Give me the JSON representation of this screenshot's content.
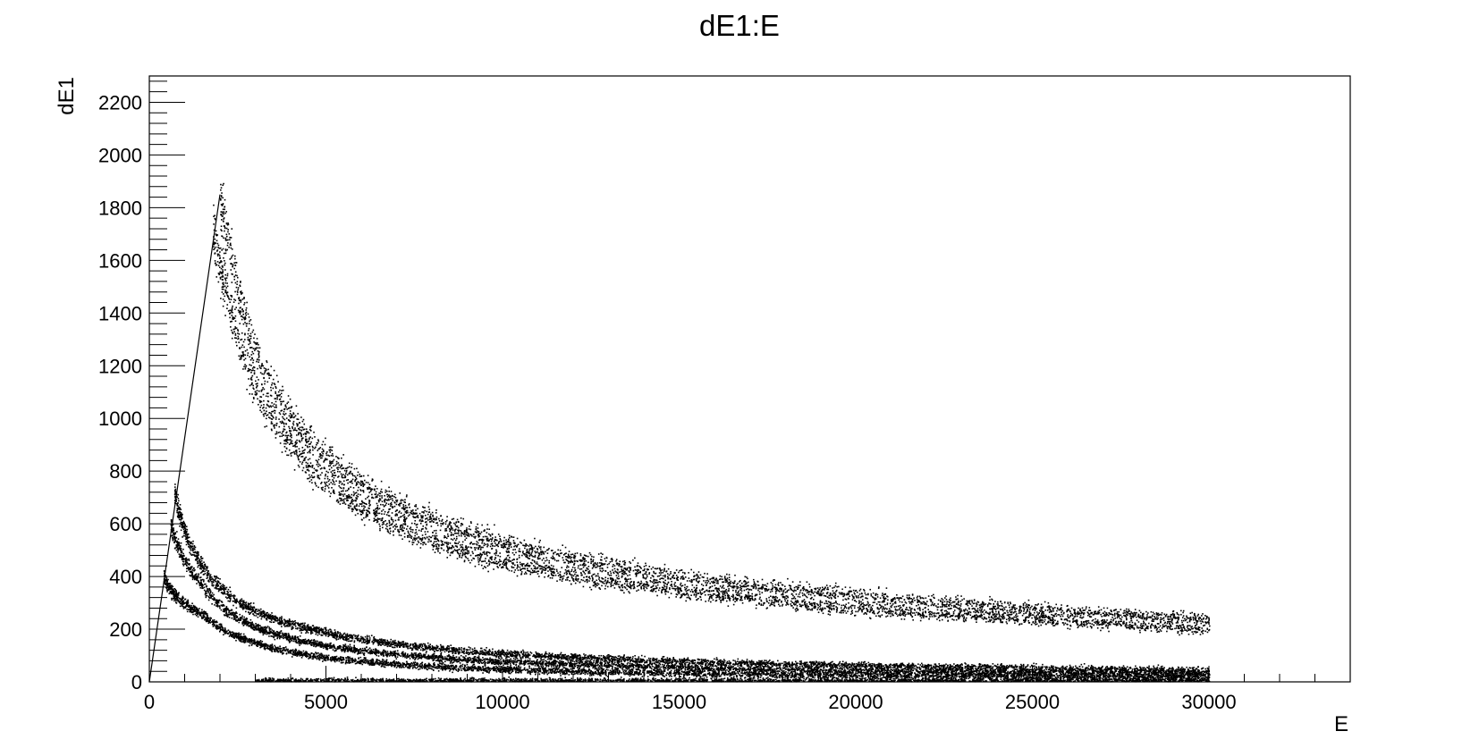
{
  "chart_data": {
    "type": "scatter",
    "title": "dE1:E",
    "xlabel": "E",
    "ylabel": "dE1",
    "xlim": [
      0,
      34000
    ],
    "ylim": [
      0,
      2300
    ],
    "x_ticks": [
      0,
      5000,
      10000,
      15000,
      20000,
      25000,
      30000
    ],
    "x_tick_labels": [
      "0",
      "5000",
      "10000",
      "15000",
      "20000",
      "25000",
      "30000"
    ],
    "y_ticks": [
      0,
      200,
      400,
      600,
      800,
      1000,
      1200,
      1400,
      1600,
      1800,
      2000,
      2200
    ],
    "y_tick_labels": [
      "0",
      "200",
      "400",
      "600",
      "800",
      "1000",
      "1200",
      "1400",
      "1600",
      "1800",
      "2000",
      "2200"
    ],
    "grid": false,
    "legend": "none",
    "marker_color": "#000000",
    "bands": [
      {
        "kind": "punch-through",
        "x_range": [
          2000,
          30000
        ],
        "anchors": [
          [
            2000,
            1840
          ],
          [
            3000,
            1250
          ],
          [
            5000,
            850
          ],
          [
            7500,
            640
          ],
          [
            10000,
            530
          ],
          [
            15000,
            400
          ],
          [
            20000,
            330
          ],
          [
            25000,
            280
          ],
          [
            30000,
            240
          ]
        ]
      },
      {
        "kind": "punch-through",
        "x_range": [
          1800,
          30000
        ],
        "anchors": [
          [
            1800,
            1720
          ],
          [
            3000,
            1120
          ],
          [
            5000,
            760
          ],
          [
            7500,
            560
          ],
          [
            10000,
            460
          ],
          [
            15000,
            350
          ],
          [
            20000,
            280
          ],
          [
            25000,
            240
          ],
          [
            30000,
            200
          ]
        ]
      },
      {
        "kind": "punch-through",
        "x_range": [
          700,
          30000
        ],
        "anchors": [
          [
            700,
            720
          ],
          [
            1500,
            440
          ],
          [
            3000,
            270
          ],
          [
            5000,
            190
          ],
          [
            10000,
            110
          ],
          [
            15000,
            80
          ],
          [
            20000,
            65
          ],
          [
            25000,
            55
          ],
          [
            30000,
            45
          ]
        ]
      },
      {
        "kind": "punch-through",
        "x_range": [
          600,
          30000
        ],
        "anchors": [
          [
            600,
            600
          ],
          [
            1500,
            370
          ],
          [
            3000,
            210
          ],
          [
            5000,
            140
          ],
          [
            10000,
            80
          ],
          [
            15000,
            58
          ],
          [
            20000,
            45
          ],
          [
            25000,
            38
          ],
          [
            30000,
            32
          ]
        ]
      },
      {
        "kind": "punch-through",
        "x_range": [
          400,
          30000
        ],
        "anchors": [
          [
            400,
            400
          ],
          [
            1500,
            260
          ],
          [
            3000,
            150
          ],
          [
            5000,
            95
          ],
          [
            10000,
            50
          ],
          [
            15000,
            35
          ],
          [
            20000,
            27
          ],
          [
            25000,
            23
          ],
          [
            30000,
            20
          ]
        ]
      }
    ],
    "stopping_line": {
      "from": [
        0,
        0
      ],
      "to": [
        2000,
        1850
      ]
    }
  }
}
